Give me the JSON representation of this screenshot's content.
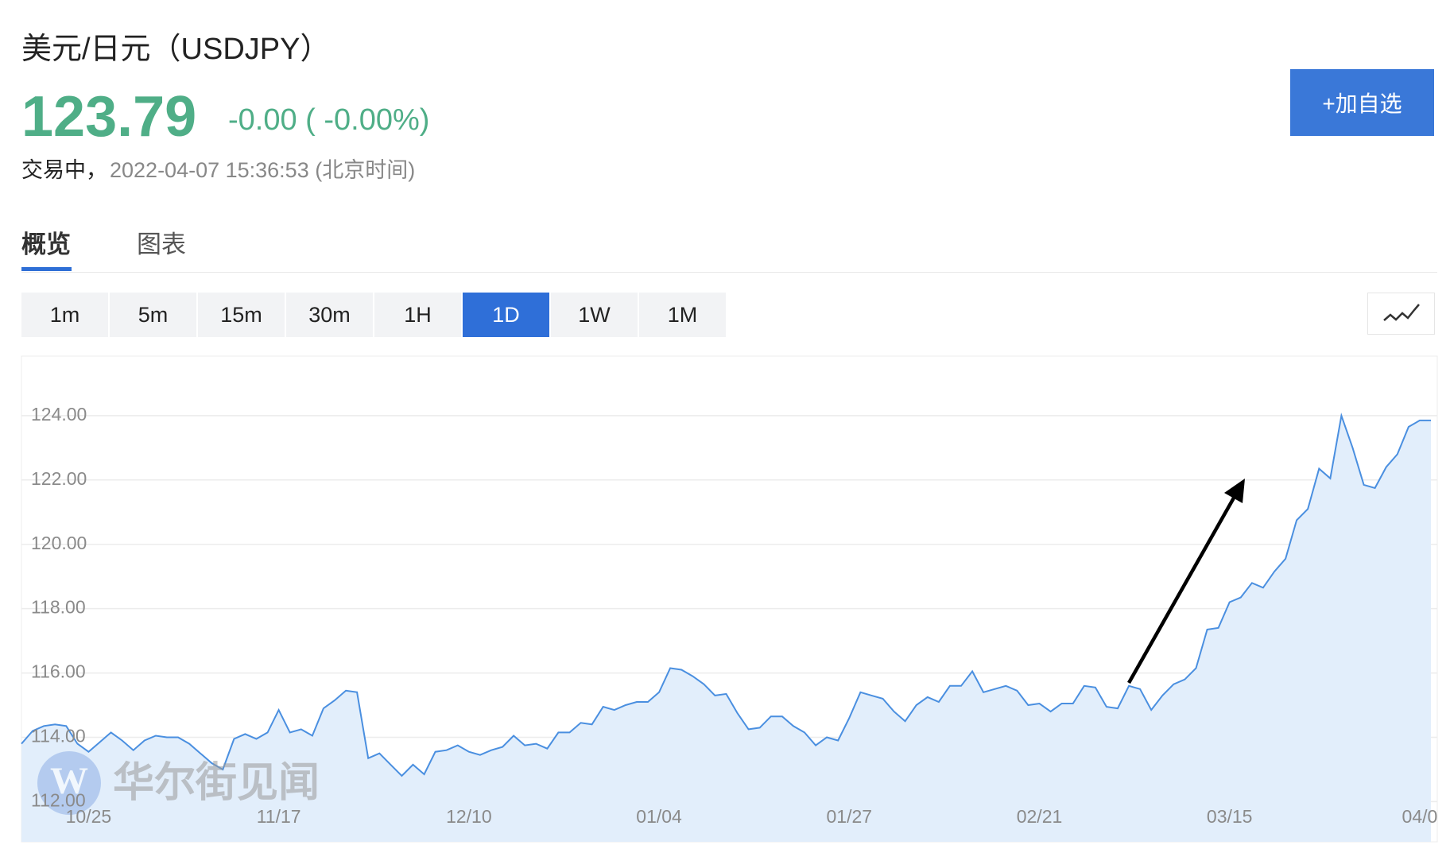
{
  "header": {
    "title": "美元/日元（USDJPY）",
    "price": "123.79",
    "change": "-0.00 ( -0.00%)",
    "status": "交易中，",
    "timestamp": "2022-04-07 15:36:53 (北京时间)",
    "button": "+加自选"
  },
  "tabs": [
    "概览",
    "图表"
  ],
  "periods": [
    "1m",
    "5m",
    "15m",
    "30m",
    "1H",
    "1D",
    "1W",
    "1M"
  ],
  "active_period": "1D",
  "watermark": "华尔街见闻",
  "chart_data": {
    "type": "area",
    "color": "#4a8fe0",
    "fill": "#e2eefb",
    "grid": true,
    "categories": [
      null,
      null,
      null,
      null,
      null,
      null,
      "10/25",
      null,
      null,
      null,
      null,
      null,
      null,
      null,
      null,
      null,
      null,
      null,
      null,
      null,
      null,
      null,
      null,
      "11/17",
      null,
      null,
      null,
      null,
      null,
      null,
      null,
      null,
      null,
      null,
      null,
      null,
      null,
      null,
      null,
      null,
      "12/10",
      null,
      null,
      null,
      null,
      null,
      null,
      null,
      null,
      null,
      null,
      null,
      null,
      null,
      null,
      null,
      null,
      "01/04",
      null,
      null,
      null,
      null,
      null,
      null,
      null,
      null,
      null,
      null,
      null,
      null,
      null,
      null,
      null,
      null,
      "01/27",
      null,
      null,
      null,
      null,
      null,
      null,
      null,
      null,
      null,
      null,
      null,
      null,
      null,
      null,
      null,
      null,
      "02/21",
      null,
      null,
      null,
      null,
      null,
      null,
      null,
      null,
      null,
      null,
      null,
      null,
      null,
      null,
      null,
      null,
      "03/15",
      null,
      null,
      null,
      null,
      null,
      null,
      null,
      null,
      null,
      null,
      null,
      null,
      null,
      null,
      null,
      null,
      "04/0",
      null
    ],
    "values": [
      113.8,
      114.2,
      114.35,
      114.4,
      114.35,
      113.8,
      113.55,
      113.85,
      114.15,
      113.9,
      113.6,
      113.9,
      114.05,
      114.0,
      114.0,
      113.8,
      113.5,
      113.2,
      113.0,
      113.95,
      114.1,
      113.95,
      114.15,
      114.85,
      114.15,
      114.25,
      114.05,
      114.9,
      115.15,
      115.45,
      115.4,
      113.35,
      113.5,
      113.15,
      112.8,
      113.15,
      112.85,
      113.55,
      113.6,
      113.75,
      113.55,
      113.45,
      113.6,
      113.7,
      114.05,
      113.75,
      113.8,
      113.65,
      114.15,
      114.15,
      114.45,
      114.4,
      114.95,
      114.85,
      115.0,
      115.1,
      115.1,
      115.4,
      116.15,
      116.1,
      115.9,
      115.65,
      115.3,
      115.35,
      114.75,
      114.25,
      114.3,
      114.65,
      114.65,
      114.35,
      114.15,
      113.75,
      114.0,
      113.9,
      114.6,
      115.4,
      115.3,
      115.2,
      114.8,
      114.5,
      115.0,
      115.25,
      115.1,
      115.6,
      115.6,
      116.05,
      115.4,
      115.5,
      115.6,
      115.45,
      115.0,
      115.05,
      114.8,
      115.05,
      115.05,
      115.6,
      115.55,
      114.95,
      114.9,
      115.6,
      115.5,
      114.85,
      115.3,
      115.65,
      115.8,
      116.15,
      117.35,
      117.4,
      118.2,
      118.35,
      118.8,
      118.65,
      119.15,
      119.55,
      120.75,
      121.1,
      122.35,
      122.05,
      124.0,
      123.0,
      121.85,
      121.75,
      122.4,
      122.8,
      123.65,
      123.85,
      123.85
    ],
    "ylim": [
      110.75,
      125.85
    ],
    "yticks": [
      {
        "value": 112,
        "label": "112.00"
      },
      {
        "value": 114,
        "label": "114.00"
      },
      {
        "value": 116,
        "label": "116.00"
      },
      {
        "value": 118,
        "label": "118.00"
      },
      {
        "value": 120,
        "label": "120.00"
      },
      {
        "value": 122,
        "label": "122.00"
      },
      {
        "value": 124,
        "label": "124.00"
      }
    ]
  }
}
